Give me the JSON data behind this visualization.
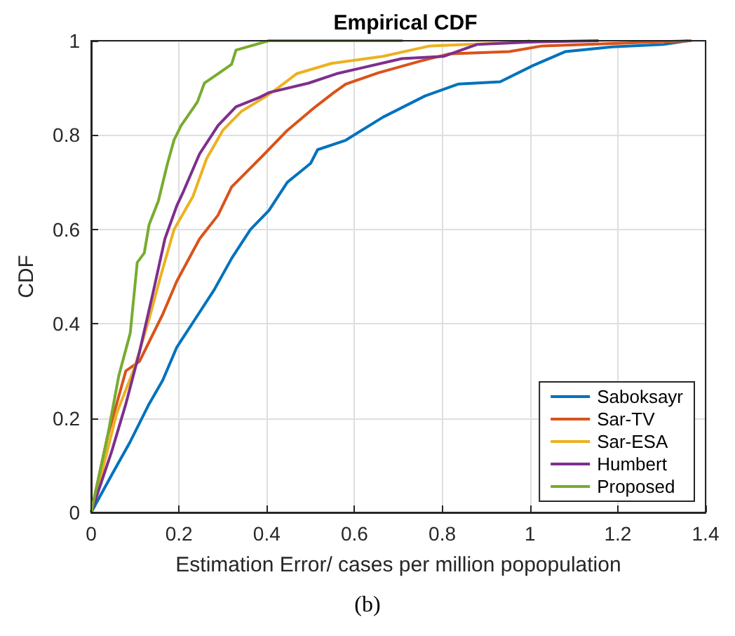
{
  "chart_data": {
    "type": "line",
    "title": "Empirical CDF",
    "xlabel": "Estimation Error/ cases per million popopulation",
    "ylabel": "CDF",
    "annotations": [
      "(b)"
    ],
    "xlim": [
      0,
      1.4
    ],
    "xticks": [
      0,
      0.2,
      0.4,
      0.6,
      0.8,
      1,
      1.2,
      1.4
    ],
    "ylim": [
      0,
      1
    ],
    "yticks": [
      0,
      0.2,
      0.4,
      0.6,
      0.8,
      1
    ],
    "grid": true,
    "legend": "bottom right",
    "marker": "none",
    "line_style": "solid",
    "series": [
      {
        "name": "Saboksayr",
        "color": "#0072bd",
        "x": [
          0,
          0.047,
          0.089,
          0.132,
          0.163,
          0.195,
          0.237,
          0.279,
          0.321,
          0.363,
          0.405,
          0.447,
          0.5,
          0.516,
          0.58,
          0.665,
          0.761,
          0.836,
          0.932,
          1.006,
          1.081,
          1.187,
          1.304,
          1.36
        ],
        "values": [
          0,
          0.08,
          0.15,
          0.23,
          0.28,
          0.35,
          0.41,
          0.47,
          0.54,
          0.6,
          0.64,
          0.7,
          0.74,
          0.769,
          0.789,
          0.838,
          0.883,
          0.908,
          0.913,
          0.947,
          0.977,
          0.987,
          0.992,
          1
        ]
      },
      {
        "name": "Sar-TV",
        "color": "#d95319",
        "x": [
          0,
          0.037,
          0.079,
          0.11,
          0.163,
          0.195,
          0.247,
          0.289,
          0.32,
          0.363,
          0.395,
          0.447,
          0.511,
          0.553,
          0.58,
          0.655,
          0.751,
          0.815,
          0.953,
          1.028,
          1.368
        ],
        "values": [
          0,
          0.16,
          0.3,
          0.32,
          0.42,
          0.49,
          0.58,
          0.63,
          0.69,
          0.73,
          0.76,
          0.81,
          0.86,
          0.89,
          0.908,
          0.932,
          0.957,
          0.972,
          0.977,
          0.989,
          1
        ]
      },
      {
        "name": "Sar-ESA",
        "color": "#edb120",
        "x": [
          0,
          0.026,
          0.058,
          0.1,
          0.132,
          0.158,
          0.189,
          0.232,
          0.263,
          0.3,
          0.342,
          0.395,
          0.426,
          0.468,
          0.548,
          0.665,
          0.772,
          0.985,
          1.0
        ],
        "values": [
          0,
          0.09,
          0.21,
          0.31,
          0.41,
          0.5,
          0.6,
          0.67,
          0.75,
          0.81,
          0.85,
          0.88,
          0.9,
          0.93,
          0.952,
          0.967,
          0.989,
          0.997,
          1
        ]
      },
      {
        "name": "Humbert",
        "color": "#7e2f8e",
        "x": [
          0,
          0.047,
          0.079,
          0.11,
          0.142,
          0.168,
          0.195,
          0.21,
          0.247,
          0.289,
          0.33,
          0.384,
          0.405,
          0.495,
          0.559,
          0.708,
          0.804,
          0.879,
          0.995,
          1.156
        ],
        "values": [
          0,
          0.13,
          0.23,
          0.34,
          0.47,
          0.58,
          0.65,
          0.68,
          0.76,
          0.82,
          0.86,
          0.88,
          0.89,
          0.91,
          0.93,
          0.962,
          0.967,
          0.992,
          0.997,
          1
        ]
      },
      {
        "name": "Proposed",
        "color": "#77ac30",
        "x": [
          0,
          0.037,
          0.063,
          0.089,
          0.105,
          0.121,
          0.132,
          0.153,
          0.174,
          0.189,
          0.205,
          0.242,
          0.258,
          0.289,
          0.32,
          0.33,
          0.405,
          0.71
        ],
        "values": [
          0,
          0.16,
          0.29,
          0.38,
          0.53,
          0.55,
          0.61,
          0.66,
          0.74,
          0.79,
          0.82,
          0.87,
          0.91,
          0.93,
          0.95,
          0.98,
          1,
          1
        ]
      }
    ]
  }
}
